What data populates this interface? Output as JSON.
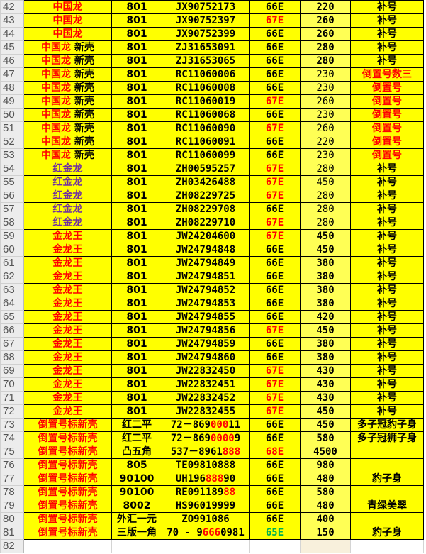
{
  "colors": {
    "cell_fill": "#ffff00",
    "red": "#ff0000",
    "purple": "#7030a0",
    "green": "#00b050",
    "black": "#000000"
  },
  "rows": [
    {
      "n": "42",
      "a": [
        {
          "t": "中国龙",
          "c": "red"
        }
      ],
      "b": "801",
      "c": [
        {
          "t": "JX90752173"
        }
      ],
      "d": {
        "t": "66E",
        "c": "black"
      },
      "e": "220",
      "f": {
        "t": "补号",
        "c": "black"
      }
    },
    {
      "n": "43",
      "a": [
        {
          "t": "中国龙",
          "c": "red"
        }
      ],
      "b": "801",
      "c": [
        {
          "t": "JX90752397"
        }
      ],
      "d": {
        "t": "67E",
        "c": "red"
      },
      "e": "260",
      "f": {
        "t": "补号",
        "c": "black"
      }
    },
    {
      "n": "44",
      "a": [
        {
          "t": "中国龙",
          "c": "red"
        }
      ],
      "b": "801",
      "c": [
        {
          "t": "JX90752399"
        }
      ],
      "d": {
        "t": "66E",
        "c": "black"
      },
      "e": "260",
      "f": {
        "t": "补号",
        "c": "black"
      }
    },
    {
      "n": "45",
      "a": [
        {
          "t": "中国龙",
          "c": "red"
        },
        {
          "t": " 新壳",
          "c": "black"
        }
      ],
      "b": "801",
      "c": [
        {
          "t": "ZJ31653091"
        }
      ],
      "d": {
        "t": "66E",
        "c": "black"
      },
      "e": "280",
      "f": {
        "t": "补号",
        "c": "black"
      }
    },
    {
      "n": "46",
      "a": [
        {
          "t": "中国龙",
          "c": "red"
        },
        {
          "t": " 新壳",
          "c": "black"
        }
      ],
      "b": "801",
      "c": [
        {
          "t": "ZJ31653065"
        }
      ],
      "d": {
        "t": "66E",
        "c": "black"
      },
      "e": "280",
      "f": {
        "t": "补号",
        "c": "black"
      }
    },
    {
      "n": "47",
      "a": [
        {
          "t": "中国龙",
          "c": "red"
        },
        {
          "t": " 新壳",
          "c": "black"
        }
      ],
      "b": "801",
      "c": [
        {
          "t": "RC11060006"
        }
      ],
      "d": {
        "t": "66E",
        "c": "black"
      },
      "e": "230",
      "f": {
        "t": "倒置号数三",
        "c": "red"
      }
    },
    {
      "n": "48",
      "a": [
        {
          "t": "中国龙",
          "c": "red"
        },
        {
          "t": " 新壳",
          "c": "black"
        }
      ],
      "b": "801",
      "c": [
        {
          "t": "RC11060008"
        }
      ],
      "d": {
        "t": "66E",
        "c": "black"
      },
      "e": "230",
      "f": {
        "t": "倒置号",
        "c": "red"
      }
    },
    {
      "n": "49",
      "a": [
        {
          "t": "中国龙",
          "c": "red"
        },
        {
          "t": " 新壳",
          "c": "black"
        }
      ],
      "b": "801",
      "c": [
        {
          "t": "RC11060019"
        }
      ],
      "d": {
        "t": "67E",
        "c": "red"
      },
      "e": "260",
      "f": {
        "t": "倒置号",
        "c": "red"
      }
    },
    {
      "n": "50",
      "a": [
        {
          "t": "中国龙",
          "c": "red"
        },
        {
          "t": " 新壳",
          "c": "black"
        }
      ],
      "b": "801",
      "c": [
        {
          "t": "RC11060068"
        }
      ],
      "d": {
        "t": "66E",
        "c": "black"
      },
      "e": "230",
      "f": {
        "t": "倒置号",
        "c": "red"
      }
    },
    {
      "n": "51",
      "a": [
        {
          "t": "中国龙",
          "c": "red"
        },
        {
          "t": " 新壳",
          "c": "black"
        }
      ],
      "b": "801",
      "c": [
        {
          "t": "RC11060090"
        }
      ],
      "d": {
        "t": "67E",
        "c": "red"
      },
      "e": "260",
      "f": {
        "t": "倒置号",
        "c": "red"
      }
    },
    {
      "n": "52",
      "a": [
        {
          "t": "中国龙",
          "c": "red"
        },
        {
          "t": " 新壳",
          "c": "black"
        }
      ],
      "b": "801",
      "c": [
        {
          "t": "RC11060091"
        }
      ],
      "d": {
        "t": "66E",
        "c": "black"
      },
      "e": "220",
      "f": {
        "t": "倒置号",
        "c": "red"
      }
    },
    {
      "n": "53",
      "a": [
        {
          "t": "中国龙",
          "c": "red"
        },
        {
          "t": " 新壳",
          "c": "black"
        }
      ],
      "b": "801",
      "c": [
        {
          "t": "RC11060099"
        }
      ],
      "d": {
        "t": "66E",
        "c": "black"
      },
      "e": "230",
      "f": {
        "t": "倒置号",
        "c": "red"
      }
    },
    {
      "n": "54",
      "a": [
        {
          "t": "红金龙",
          "c": "purple"
        }
      ],
      "b": "801",
      "c": [
        {
          "t": "ZH00595257"
        }
      ],
      "d": {
        "t": "67E",
        "c": "red"
      },
      "e": "280",
      "f": {
        "t": "补号",
        "c": "black"
      }
    },
    {
      "n": "55",
      "a": [
        {
          "t": "红金龙",
          "c": "purple"
        }
      ],
      "b": "801",
      "c": [
        {
          "t": "ZH03426488"
        }
      ],
      "d": {
        "t": "67E",
        "c": "red"
      },
      "e": "450",
      "f": {
        "t": "补号",
        "c": "black"
      }
    },
    {
      "n": "56",
      "a": [
        {
          "t": "红金龙",
          "c": "purple"
        }
      ],
      "b": "801",
      "c": [
        {
          "t": "ZH08229725"
        }
      ],
      "d": {
        "t": "67E",
        "c": "red"
      },
      "e": "280",
      "f": {
        "t": "补号",
        "c": "black"
      }
    },
    {
      "n": "57",
      "a": [
        {
          "t": "红金龙",
          "c": "purple"
        }
      ],
      "b": "801",
      "c": [
        {
          "t": "ZH08229708"
        }
      ],
      "d": {
        "t": "66E",
        "c": "black"
      },
      "e": "280",
      "f": {
        "t": "补号",
        "c": "black"
      }
    },
    {
      "n": "58",
      "a": [
        {
          "t": "红金龙",
          "c": "purple"
        }
      ],
      "b": "801",
      "c": [
        {
          "t": "ZH08229710"
        }
      ],
      "d": {
        "t": "67E",
        "c": "red"
      },
      "e": "280",
      "f": {
        "t": "补号",
        "c": "black"
      }
    },
    {
      "n": "59",
      "a": [
        {
          "t": "金龙王",
          "c": "red"
        }
      ],
      "b": "801",
      "c": [
        {
          "t": "JW24204600"
        }
      ],
      "d": {
        "t": "67E",
        "c": "red"
      },
      "e": "450",
      "f": {
        "t": "补号",
        "c": "black"
      }
    },
    {
      "n": "60",
      "a": [
        {
          "t": "金龙王",
          "c": "red"
        }
      ],
      "b": "801",
      "c": [
        {
          "t": "JW24794848"
        }
      ],
      "d": {
        "t": "66E",
        "c": "black"
      },
      "e": "450",
      "f": {
        "t": "补号",
        "c": "black"
      }
    },
    {
      "n": "61",
      "a": [
        {
          "t": "金龙王",
          "c": "red"
        }
      ],
      "b": "801",
      "c": [
        {
          "t": "JW24794849"
        }
      ],
      "d": {
        "t": "66E",
        "c": "black"
      },
      "e": "380",
      "f": {
        "t": "补号",
        "c": "black"
      }
    },
    {
      "n": "62",
      "a": [
        {
          "t": "金龙王",
          "c": "red"
        }
      ],
      "b": "801",
      "c": [
        {
          "t": "JW24794851"
        }
      ],
      "d": {
        "t": "66E",
        "c": "black"
      },
      "e": "380",
      "f": {
        "t": "补号",
        "c": "black"
      }
    },
    {
      "n": "63",
      "a": [
        {
          "t": "金龙王",
          "c": "red"
        }
      ],
      "b": "801",
      "c": [
        {
          "t": "JW24794852"
        }
      ],
      "d": {
        "t": "66E",
        "c": "black"
      },
      "e": "380",
      "f": {
        "t": "补号",
        "c": "black"
      }
    },
    {
      "n": "64",
      "a": [
        {
          "t": "金龙王",
          "c": "red"
        }
      ],
      "b": "801",
      "c": [
        {
          "t": "JW24794853"
        }
      ],
      "d": {
        "t": "66E",
        "c": "black"
      },
      "e": "380",
      "f": {
        "t": "补号",
        "c": "black"
      }
    },
    {
      "n": "65",
      "a": [
        {
          "t": "金龙王",
          "c": "red"
        }
      ],
      "b": "801",
      "c": [
        {
          "t": "JW24794855"
        }
      ],
      "d": {
        "t": "66E",
        "c": "black"
      },
      "e": "420",
      "f": {
        "t": "补号",
        "c": "black"
      }
    },
    {
      "n": "66",
      "a": [
        {
          "t": "金龙王",
          "c": "red"
        }
      ],
      "b": "801",
      "c": [
        {
          "t": "JW24794856"
        }
      ],
      "d": {
        "t": "67E",
        "c": "red"
      },
      "e": "450",
      "f": {
        "t": "补号",
        "c": "black"
      }
    },
    {
      "n": "67",
      "a": [
        {
          "t": "金龙王",
          "c": "red"
        }
      ],
      "b": "801",
      "c": [
        {
          "t": "JW24794859"
        }
      ],
      "d": {
        "t": "66E",
        "c": "black"
      },
      "e": "380",
      "f": {
        "t": "补号",
        "c": "black"
      }
    },
    {
      "n": "68",
      "a": [
        {
          "t": "金龙王",
          "c": "red"
        }
      ],
      "b": "801",
      "c": [
        {
          "t": "JW24794860"
        }
      ],
      "d": {
        "t": "66E",
        "c": "black"
      },
      "e": "380",
      "f": {
        "t": "补号",
        "c": "black"
      }
    },
    {
      "n": "69",
      "a": [
        {
          "t": "金龙王",
          "c": "red"
        }
      ],
      "b": "801",
      "c": [
        {
          "t": "JW22832450"
        }
      ],
      "d": {
        "t": "67E",
        "c": "red"
      },
      "e": "430",
      "f": {
        "t": "补号",
        "c": "black"
      }
    },
    {
      "n": "70",
      "a": [
        {
          "t": "金龙王",
          "c": "red"
        }
      ],
      "b": "801",
      "c": [
        {
          "t": "JW22832451"
        }
      ],
      "d": {
        "t": "67E",
        "c": "red"
      },
      "e": "430",
      "f": {
        "t": "补号",
        "c": "black"
      }
    },
    {
      "n": "71",
      "a": [
        {
          "t": "金龙王",
          "c": "red"
        }
      ],
      "b": "801",
      "c": [
        {
          "t": "JW22832452"
        }
      ],
      "d": {
        "t": "67E",
        "c": "red"
      },
      "e": "430",
      "f": {
        "t": "补号",
        "c": "black"
      }
    },
    {
      "n": "72",
      "a": [
        {
          "t": "金龙王",
          "c": "red"
        }
      ],
      "b": "801",
      "c": [
        {
          "t": "JW22832455"
        }
      ],
      "d": {
        "t": "67E",
        "c": "red"
      },
      "e": "450",
      "f": {
        "t": "补号",
        "c": "black"
      }
    },
    {
      "n": "73",
      "a": [
        {
          "t": "倒置号标新壳",
          "c": "red"
        }
      ],
      "b": "红二平",
      "c": [
        {
          "t": "72－869"
        },
        {
          "t": "000",
          "c": "red"
        },
        {
          "t": "11"
        }
      ],
      "d": {
        "t": "66E",
        "c": "black"
      },
      "e": "450",
      "f": {
        "t": "多子冠豹子身",
        "c": "black"
      }
    },
    {
      "n": "74",
      "a": [
        {
          "t": "倒置号标新壳",
          "c": "red"
        }
      ],
      "b": "红二平",
      "c": [
        {
          "t": "72－869"
        },
        {
          "t": "0000",
          "c": "red"
        },
        {
          "t": "9"
        }
      ],
      "d": {
        "t": "66E",
        "c": "black"
      },
      "e": "580",
      "f": {
        "t": "多子冠狮子身",
        "c": "black"
      }
    },
    {
      "n": "75",
      "a": [
        {
          "t": "倒置号标新壳",
          "c": "red"
        }
      ],
      "b": "凸五角",
      "c": [
        {
          "t": "537－8961"
        },
        {
          "t": "888",
          "c": "red"
        }
      ],
      "d": {
        "t": "68E",
        "c": "red"
      },
      "e": "4500",
      "f": {
        "t": "",
        "c": "black"
      }
    },
    {
      "n": "76",
      "a": [
        {
          "t": "倒置号标新壳",
          "c": "red"
        }
      ],
      "b": "805",
      "c": [
        {
          "t": "TE09810888"
        }
      ],
      "d": {
        "t": "66E",
        "c": "black"
      },
      "e": "980",
      "f": {
        "t": "",
        "c": "black"
      }
    },
    {
      "n": "77",
      "a": [
        {
          "t": "倒置号标新壳",
          "c": "red"
        }
      ],
      "b": "90100",
      "c": [
        {
          "t": "UH196"
        },
        {
          "t": "888",
          "c": "red"
        },
        {
          "t": "90"
        }
      ],
      "d": {
        "t": "66E",
        "c": "black"
      },
      "e": "480",
      "f": {
        "t": "豹子身",
        "c": "black"
      }
    },
    {
      "n": "78",
      "a": [
        {
          "t": "倒置号标新壳",
          "c": "red"
        }
      ],
      "b": "90100",
      "c": [
        {
          "t": "RE091189"
        },
        {
          "t": "88",
          "c": "red"
        }
      ],
      "d": {
        "t": "66E",
        "c": "black"
      },
      "e": "580",
      "f": {
        "t": "",
        "c": "black"
      }
    },
    {
      "n": "79",
      "a": [
        {
          "t": "倒置号标新壳",
          "c": "red"
        }
      ],
      "b": "8002",
      "c": [
        {
          "t": "HS96019999"
        }
      ],
      "d": {
        "t": "66E",
        "c": "black"
      },
      "e": "480",
      "f": {
        "t": "青绿美翠",
        "c": "black"
      }
    },
    {
      "n": "80",
      "a": [
        {
          "t": "倒置号标新壳",
          "c": "red"
        }
      ],
      "b": "外汇一元",
      "c": [
        {
          "t": "ZO991086"
        }
      ],
      "d": {
        "t": "66E",
        "c": "black"
      },
      "e": "400",
      "f": {
        "t": "",
        "c": "black"
      }
    },
    {
      "n": "81",
      "a": [
        {
          "t": "倒置号标新壳",
          "c": "red"
        }
      ],
      "b": "三版一角",
      "c": [
        {
          "t": "70 - 9"
        },
        {
          "t": "666",
          "c": "red"
        },
        {
          "t": "0981"
        }
      ],
      "d": {
        "t": "65E",
        "c": "green"
      },
      "e": "150",
      "f": {
        "t": "豹子身",
        "c": "black"
      }
    }
  ],
  "empty_row": {
    "n": "82"
  }
}
